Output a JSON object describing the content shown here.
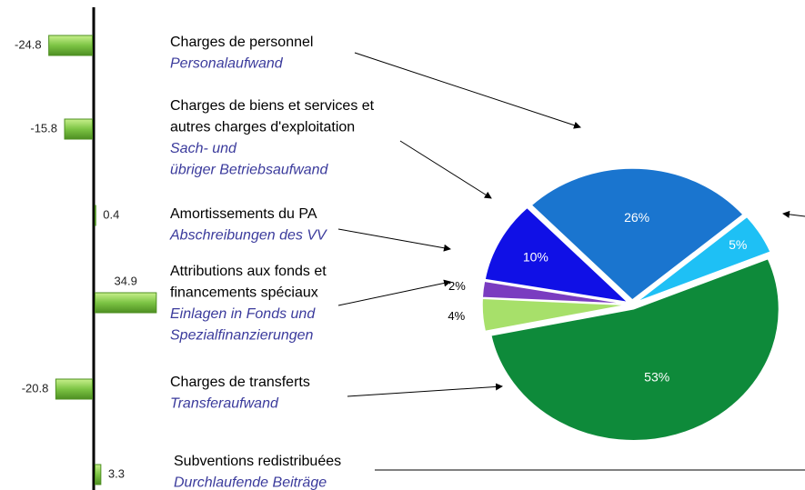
{
  "chart_data": [
    {
      "type": "bar",
      "categories": [
        {
          "fr": [
            "Charges de personnel"
          ],
          "de": [
            "Personalaufwand"
          ]
        },
        {
          "fr": [
            "Charges de biens et services et",
            "autres charges d'exploitation"
          ],
          "de": [
            "Sach- und",
            "übriger Betriebsaufwand"
          ]
        },
        {
          "fr": [
            "Amortissements du PA"
          ],
          "de": [
            "Abschreibungen des VV"
          ]
        },
        {
          "fr": [
            "Attributions aux fonds et",
            "financements spéciaux"
          ],
          "de": [
            "Einlagen in Fonds und",
            "Spezialfinanzierungen"
          ]
        },
        {
          "fr": [
            "Charges de transferts"
          ],
          "de": [
            "Transferaufwand"
          ]
        },
        {
          "fr": [
            "Subventions redistribuées"
          ],
          "de": [
            "Durchlaufende Beiträge"
          ]
        }
      ],
      "values": [
        -24.8,
        -15.8,
        0.4,
        34.9,
        -20.8,
        3.3
      ],
      "color": "#7cc444"
    },
    {
      "type": "pie",
      "values": [
        26,
        5,
        53,
        4,
        2,
        10
      ],
      "value_labels": [
        "26%",
        "5%",
        "53%",
        "4%",
        "2%",
        "10%"
      ],
      "colors": [
        "#1a75cf",
        "#1ec0f5",
        "#0e8a3a",
        "#a7e06a",
        "#7a3cc0",
        "#1010e6"
      ]
    }
  ]
}
